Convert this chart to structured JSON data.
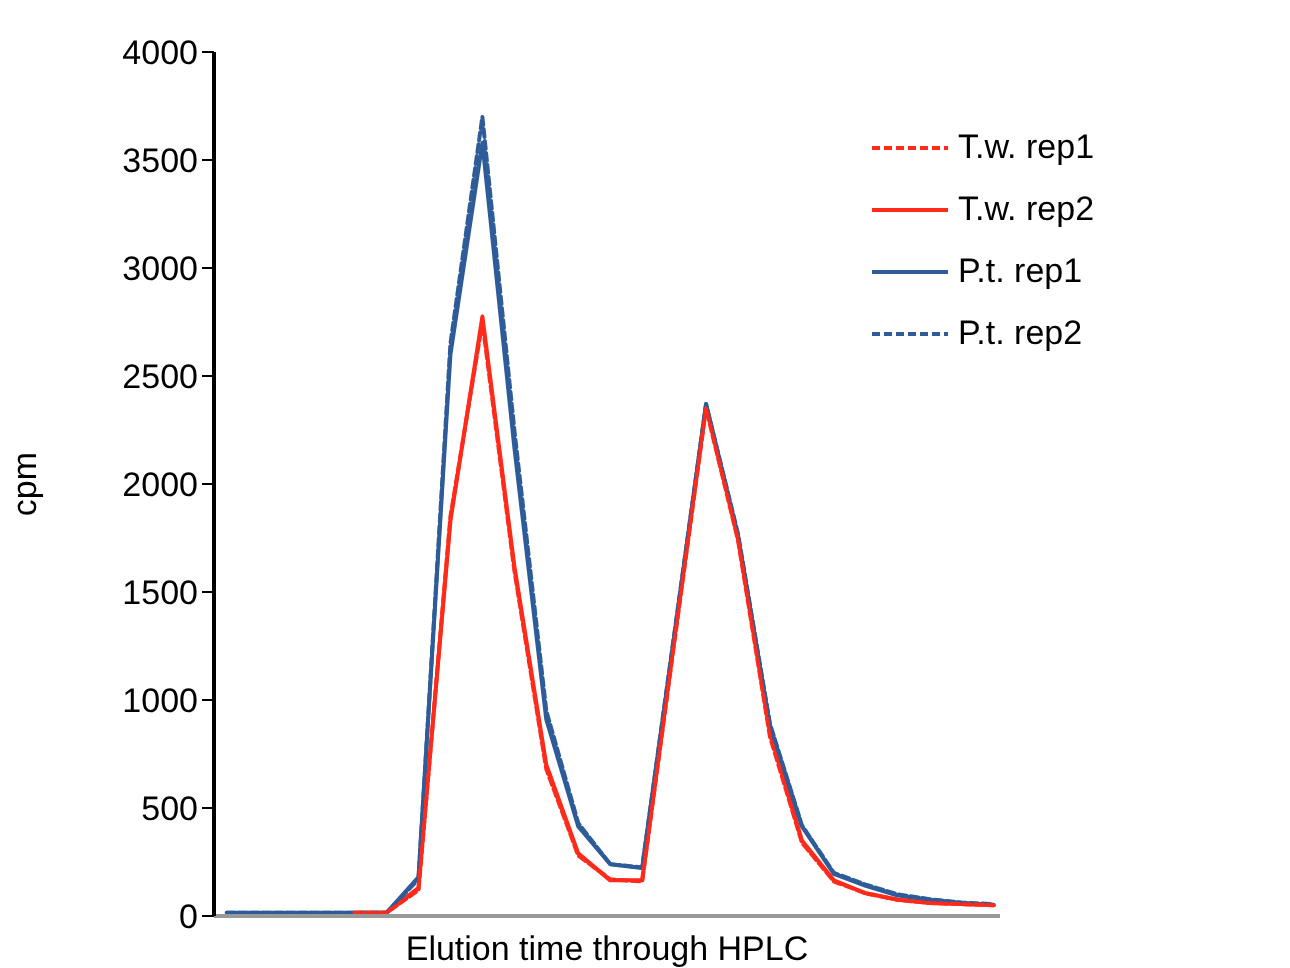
{
  "chart_data": {
    "type": "line",
    "xlabel": "Elution time through HPLC",
    "ylabel": "cpm",
    "categories": [
      null,
      null,
      null,
      null,
      null,
      null,
      null,
      null,
      null,
      null,
      null,
      null,
      null,
      null,
      null,
      null,
      null,
      null,
      null,
      null,
      null,
      null,
      null,
      null,
      null
    ],
    "ylim": [
      0,
      4000
    ],
    "yticks": [
      0,
      500,
      1000,
      1500,
      2000,
      2500,
      3000,
      3500,
      4000
    ],
    "grid": false,
    "legend": "top right",
    "marker": "none",
    "series": [
      {
        "name": "T.w. rep1",
        "color": "#ff2a1a",
        "line_style": "dashed",
        "values": [
          null,
          null,
          null,
          null,
          15,
          15,
          120,
          1850,
          2750,
          1600,
          680,
          280,
          170,
          160,
          1260,
          2350,
          1740,
          830,
          340,
          160,
          105,
          75,
          60,
          55,
          50
        ]
      },
      {
        "name": "T.w. rep2",
        "color": "#ff2a1a",
        "line_style": "solid",
        "values": [
          null,
          null,
          null,
          null,
          15,
          15,
          130,
          1830,
          2775,
          1620,
          700,
          290,
          165,
          165,
          1270,
          2360,
          1750,
          850,
          350,
          165,
          105,
          75,
          60,
          55,
          50
        ]
      },
      {
        "name": "P.t. rep1",
        "color": "#2e5c99",
        "line_style": "solid",
        "values": [
          15,
          15,
          15,
          15,
          15,
          15,
          180,
          2600,
          3580,
          2170,
          910,
          415,
          240,
          222,
          1290,
          2370,
          1760,
          880,
          415,
          195,
          140,
          95,
          75,
          60,
          52
        ]
      },
      {
        "name": "P.t. rep2",
        "color": "#2e5c99",
        "line_style": "dashed",
        "values": [
          15,
          15,
          15,
          15,
          15,
          15,
          170,
          2650,
          3700,
          2250,
          950,
          430,
          240,
          225,
          1300,
          2370,
          1770,
          890,
          420,
          200,
          145,
          100,
          78,
          62,
          55
        ]
      }
    ]
  }
}
